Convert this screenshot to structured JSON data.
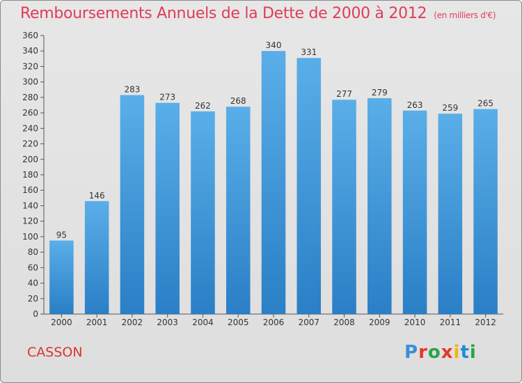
{
  "title": "Remboursements Annuels de la Dette de 2000 à 2012",
  "unit_note": "(en milliers d'€)",
  "commune": "CASSON",
  "logo_text": "Proxiti",
  "colors": {
    "title": "#e03c58",
    "bar_top": "#5aaee8",
    "bar_bottom": "#2a7fc6",
    "commune": "#d9362f"
  },
  "chart_data": {
    "type": "bar",
    "title": "Remboursements Annuels de la Dette de 2000 à 2012",
    "xlabel": "",
    "ylabel": "",
    "categories": [
      "2000",
      "2001",
      "2002",
      "2003",
      "2004",
      "2005",
      "2006",
      "2007",
      "2008",
      "2009",
      "2010",
      "2011",
      "2012"
    ],
    "values": [
      95,
      146,
      283,
      273,
      262,
      268,
      340,
      331,
      277,
      279,
      263,
      259,
      265
    ],
    "ylim": [
      0,
      360
    ],
    "yticks": [
      0,
      20,
      40,
      60,
      80,
      100,
      120,
      140,
      160,
      180,
      200,
      220,
      240,
      260,
      280,
      300,
      320,
      340,
      360
    ],
    "grid": false,
    "data_labels": true
  }
}
